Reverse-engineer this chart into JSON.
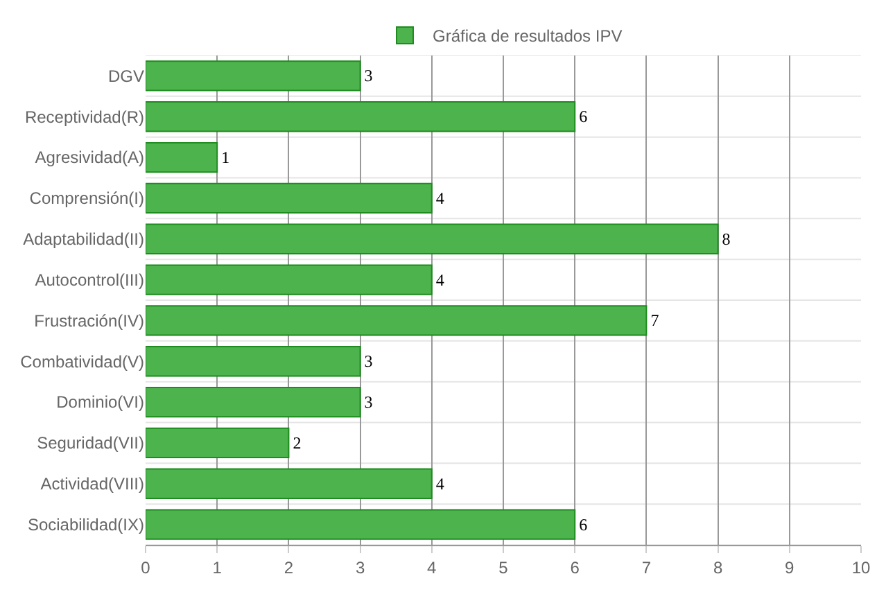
{
  "chart_data": {
    "type": "bar",
    "orientation": "horizontal",
    "categories": [
      "DGV",
      "Receptividad(R)",
      "Agresividad(A)",
      "Comprensión(I)",
      "Adaptabilidad(II)",
      "Autocontrol(III)",
      "Frustración(IV)",
      "Combatividad(V)",
      "Dominio(VI)",
      "Seguridad(VII)",
      "Actividad(VIII)",
      "Sociabilidad(IX)"
    ],
    "series": [
      {
        "name": "Gráfica de resultados IPV",
        "color": "#4db34d",
        "values": [
          3,
          6,
          1,
          4,
          8,
          4,
          7,
          3,
          3,
          2,
          4,
          6
        ]
      }
    ],
    "xlim": [
      0,
      10
    ],
    "xticks": [
      0,
      1,
      2,
      3,
      4,
      5,
      6,
      7,
      8,
      9,
      10
    ],
    "grid": true,
    "legend": "top",
    "data_labels": true
  }
}
